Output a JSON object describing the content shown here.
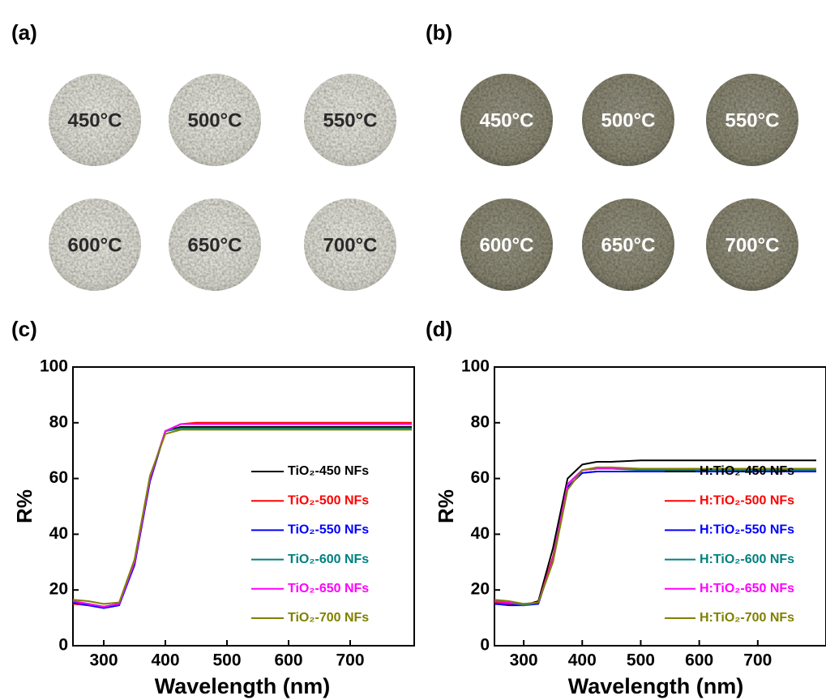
{
  "photo_panels": [
    {
      "label": "(a)",
      "samples": [
        "450°C",
        "500°C",
        "550°C",
        "600°C",
        "650°C",
        "700°C"
      ]
    },
    {
      "label": "(b)",
      "samples": [
        "450°C",
        "500°C",
        "550°C",
        "600°C",
        "650°C",
        "700°C"
      ]
    }
  ],
  "chart_data": [
    {
      "type": "line",
      "panel_label": "(c)",
      "x_label": "Wavelength (nm)",
      "y_label": "R%",
      "x": [
        250,
        275,
        300,
        325,
        350,
        375,
        400,
        425,
        450,
        500,
        550,
        600,
        650,
        700,
        750,
        800
      ],
      "xlim": [
        250,
        800
      ],
      "ylim": [
        0,
        100
      ],
      "xticks": [
        300,
        400,
        500,
        600,
        700
      ],
      "yticks": [
        0,
        20,
        40,
        60,
        80,
        100
      ],
      "series": [
        {
          "name": "TiO₂-450 NFs",
          "color": "#000000",
          "values": [
            15,
            15,
            14,
            15,
            30,
            60,
            77,
            78.5,
            78.5,
            78.5,
            78.5,
            78.5,
            78.5,
            78.5,
            78.5,
            78.5
          ]
        },
        {
          "name": "TiO₂-500 NFs",
          "color": "#ff0000",
          "values": [
            15,
            14.5,
            14,
            15,
            29,
            59,
            77,
            79.5,
            80,
            80,
            80,
            80,
            80,
            80,
            80,
            80
          ]
        },
        {
          "name": "TiO₂-550 NFs",
          "color": "#0000ff",
          "values": [
            15.5,
            14.5,
            13.5,
            14.5,
            29,
            59,
            77,
            79.5,
            79.5,
            79.5,
            79.5,
            79.5,
            79.5,
            79.5,
            79.5,
            79.5
          ]
        },
        {
          "name": "TiO₂-600 NFs",
          "color": "#008080",
          "values": [
            16,
            15,
            14,
            15,
            30,
            60,
            77,
            78,
            78,
            78,
            78,
            78,
            78,
            78,
            78,
            78
          ]
        },
        {
          "name": "TiO₂-650 NFs",
          "color": "#ff00ff",
          "values": [
            16,
            15,
            14,
            15,
            30,
            60,
            77,
            79.5,
            79.5,
            79.5,
            79.5,
            79.5,
            79.5,
            79.5,
            79.5,
            79.5
          ]
        },
        {
          "name": "TiO₂-700 NFs",
          "color": "#808000",
          "values": [
            16.5,
            16,
            15,
            15.5,
            31,
            61,
            76,
            77.5,
            77.5,
            77.5,
            77.5,
            77.5,
            77.5,
            77.5,
            77.5,
            77.5
          ]
        }
      ]
    },
    {
      "type": "line",
      "panel_label": "(d)",
      "x_label": "Wavelength (nm)",
      "y_label": "R%",
      "x": [
        250,
        275,
        300,
        325,
        350,
        375,
        400,
        425,
        450,
        500,
        550,
        600,
        650,
        700,
        750,
        800
      ],
      "xlim": [
        250,
        800
      ],
      "ylim": [
        0,
        100
      ],
      "xticks": [
        300,
        400,
        500,
        600,
        700
      ],
      "yticks": [
        0,
        20,
        40,
        60,
        80,
        100
      ],
      "series": [
        {
          "name": "H:TiO₂-450 NFs",
          "color": "#000000",
          "values": [
            16,
            15.5,
            14.5,
            16,
            35,
            60,
            65,
            66,
            66,
            66.5,
            66.5,
            66.5,
            66.5,
            66.5,
            66.5,
            66.5
          ]
        },
        {
          "name": "H:TiO₂-500 NFs",
          "color": "#ff0000",
          "values": [
            15.5,
            15,
            14.5,
            15.5,
            32,
            57,
            62,
            62.5,
            62.5,
            62.5,
            62.5,
            62.5,
            62.5,
            62.5,
            62.5,
            62.5
          ]
        },
        {
          "name": "H:TiO₂-550 NFs",
          "color": "#0000ff",
          "values": [
            15,
            14.5,
            14.5,
            15,
            31,
            57,
            62,
            62.5,
            62.5,
            62.5,
            62.5,
            62.5,
            62.5,
            62.5,
            62.5,
            62.5
          ]
        },
        {
          "name": "H:TiO₂-600 NFs",
          "color": "#008080",
          "values": [
            16,
            15.5,
            14.5,
            15.5,
            31,
            58,
            63,
            63.5,
            63.5,
            63,
            63,
            63,
            63,
            63,
            63,
            63
          ]
        },
        {
          "name": "H:TiO₂-650 NFs",
          "color": "#ff00ff",
          "values": [
            16,
            15.5,
            15,
            15.5,
            31,
            58,
            63,
            63.5,
            63.5,
            63.5,
            63.5,
            63.5,
            63.5,
            63.5,
            63.5,
            63.5
          ]
        },
        {
          "name": "H:TiO₂-700 NFs",
          "color": "#808000",
          "values": [
            16.5,
            16,
            15,
            15.5,
            30,
            56,
            63,
            64,
            64,
            63.5,
            63.5,
            63.5,
            63.5,
            63.5,
            63.5,
            63.5
          ]
        }
      ]
    }
  ]
}
